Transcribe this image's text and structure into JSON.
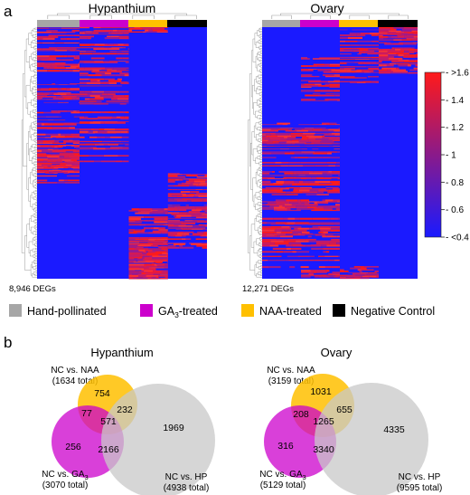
{
  "panel_a": {
    "letter": "a",
    "heatmaps": [
      {
        "title": "Hypanthium",
        "deg_count": "8,946 DEGs"
      },
      {
        "title": "Ovary",
        "deg_count": "12,271 DEGs"
      }
    ],
    "colorbar": {
      "ticks": [
        ">1.6",
        "1.4",
        "1.2",
        "1",
        "0.8",
        "0.6",
        "<0.4"
      ],
      "min_color": "#1a1aff",
      "max_color": "#ff1a1a"
    },
    "legend": [
      {
        "label_main": "Hand-pollinated",
        "label_sub": "",
        "label_tail": "",
        "color": "#a6a6a6"
      },
      {
        "label_main": "GA",
        "label_sub": "3",
        "label_tail": "-treated",
        "color": "#cc00cc"
      },
      {
        "label_main": "NAA-treated",
        "label_sub": "",
        "label_tail": "",
        "color": "#ffc000"
      },
      {
        "label_main": "Negative Control",
        "label_sub": "",
        "label_tail": "",
        "color": "#000000"
      }
    ]
  },
  "panel_b": {
    "letter": "b",
    "venns": [
      {
        "title": "Hypanthium",
        "naa": {
          "name": "NC vs. NAA",
          "total": "(1634 total)"
        },
        "ga": {
          "name_main": "NC vs. GA",
          "name_sub": "3",
          "total": "(3070 total)"
        },
        "hp": {
          "name": "NC vs. HP",
          "total": "(4938 total)"
        },
        "regions": {
          "naa_only": "754",
          "ga_naa": "77",
          "naa_hp": "232",
          "all": "571",
          "ga_only": "256",
          "ga_hp": "2166",
          "hp_only": "1969"
        }
      },
      {
        "title": "Ovary",
        "naa": {
          "name": "NC vs. NAA",
          "total": "(3159 total)"
        },
        "ga": {
          "name_main": "NC vs. GA",
          "name_sub": "3",
          "total": "(5129 total)"
        },
        "hp": {
          "name": "NC vs. HP",
          "total": "(9595 total)"
        },
        "regions": {
          "naa_only": "1031",
          "ga_naa": "208",
          "naa_hp": "655",
          "all": "1265",
          "ga_only": "316",
          "ga_hp": "3340",
          "hp_only": "4335"
        }
      }
    ],
    "colors": {
      "naa": "#ffc000",
      "ga": "#cc00cc",
      "hp": "#c8c8c8"
    }
  }
}
